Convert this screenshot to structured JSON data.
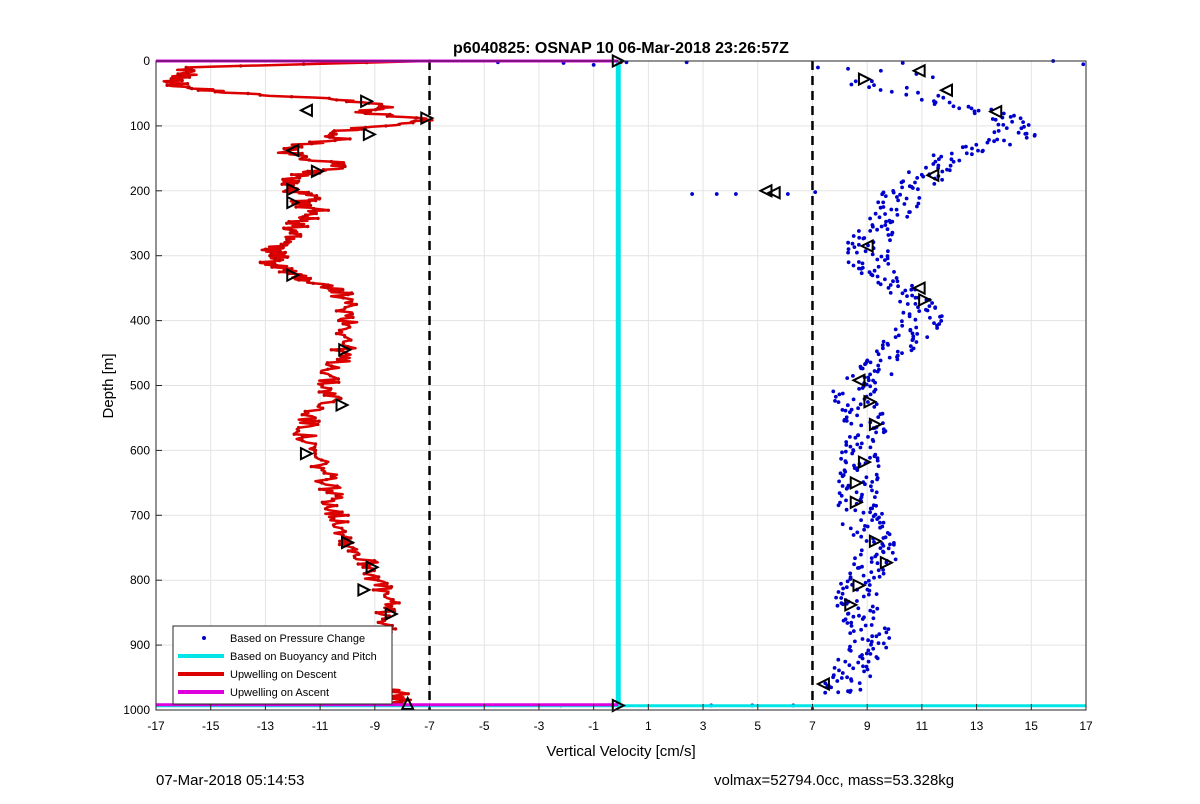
{
  "chart_data": {
    "type": "scatter",
    "title": "p6040825: OSNAP 10 06-Mar-2018 23:26:57Z",
    "xlabel": "Vertical Velocity [cm/s]",
    "ylabel": "Depth [m]",
    "xlim": [
      -17,
      17
    ],
    "ylim": [
      1000,
      0
    ],
    "y_reversed": true,
    "grid": true,
    "x_ticks": [
      -17,
      -15,
      -13,
      -11,
      -9,
      -7,
      -5,
      -3,
      -1,
      1,
      3,
      5,
      7,
      9,
      11,
      13,
      15,
      17
    ],
    "y_ticks": [
      0,
      100,
      200,
      300,
      400,
      500,
      600,
      700,
      800,
      900,
      1000
    ],
    "legend_position": "bottom-left",
    "reference_lines": {
      "dashed_vertical_x": [
        -7,
        7
      ],
      "buoyancy_line_x": -0.1,
      "top_line_depth": 0,
      "bottom_line_depth": 992
    },
    "series": [
      {
        "name": "Based on Pressure Change",
        "color": "#0000cc",
        "marker": "dot",
        "profile": [
          [
            30,
            8.5
          ],
          [
            60,
            11.5
          ],
          [
            80,
            13.6
          ],
          [
            100,
            14.2
          ],
          [
            120,
            14.4
          ],
          [
            140,
            12.6
          ],
          [
            160,
            11.4
          ],
          [
            180,
            11.2
          ],
          [
            200,
            10.2
          ],
          [
            220,
            10.1
          ],
          [
            240,
            9.8
          ],
          [
            260,
            9.4
          ],
          [
            280,
            9.1
          ],
          [
            300,
            9.0
          ],
          [
            320,
            9.2
          ],
          [
            340,
            9.8
          ],
          [
            360,
            10.8
          ],
          [
            380,
            11.1
          ],
          [
            400,
            11.0
          ],
          [
            420,
            10.6
          ],
          [
            440,
            10.0
          ],
          [
            460,
            9.7
          ],
          [
            480,
            9.3
          ],
          [
            500,
            8.6
          ],
          [
            520,
            8.5
          ],
          [
            540,
            8.8
          ],
          [
            560,
            9.0
          ],
          [
            580,
            9.0
          ],
          [
            600,
            8.7
          ],
          [
            620,
            8.6
          ],
          [
            640,
            8.7
          ],
          [
            660,
            8.6
          ],
          [
            680,
            8.7
          ],
          [
            700,
            8.8
          ],
          [
            720,
            8.9
          ],
          [
            740,
            9.2
          ],
          [
            760,
            9.3
          ],
          [
            780,
            9.3
          ],
          [
            800,
            8.8
          ],
          [
            820,
            8.6
          ],
          [
            840,
            8.7
          ],
          [
            860,
            8.9
          ],
          [
            880,
            9.1
          ],
          [
            900,
            9.0
          ],
          [
            920,
            8.7
          ],
          [
            940,
            8.4
          ],
          [
            960,
            8.2
          ],
          [
            975,
            8.0
          ]
        ],
        "outliers": [
          [
            0,
            15.8
          ],
          [
            5,
            16.9
          ],
          [
            3,
            10.3
          ],
          [
            2,
            0.2
          ],
          [
            2,
            2.4
          ],
          [
            2,
            -4.5
          ],
          [
            3,
            -2.1
          ],
          [
            6,
            -1.0
          ],
          [
            10,
            7.2
          ],
          [
            12,
            8.3
          ],
          [
            15,
            9.5
          ],
          [
            20,
            10.8
          ],
          [
            25,
            11.4
          ],
          [
            205,
            2.6
          ],
          [
            205,
            3.5
          ],
          [
            205,
            4.2
          ],
          [
            205,
            6.1
          ],
          [
            202,
            7.1
          ],
          [
            993,
            -3.0
          ],
          [
            993,
            -2.2
          ],
          [
            993,
            3.3
          ],
          [
            993,
            4.8
          ],
          [
            993,
            6.3
          ]
        ]
      },
      {
        "name": "Based on Buoyancy and Pitch",
        "color": "#00e5e5",
        "marker": "line",
        "x": [
          -0.1,
          -0.1
        ],
        "depth": [
          0,
          993
        ]
      },
      {
        "name": "Upwelling on Descent",
        "color": "#dd0000",
        "marker": "line",
        "profile": [
          [
            0,
            -7.0
          ],
          [
            10,
            -16.2
          ],
          [
            20,
            -15.8
          ],
          [
            30,
            -16.4
          ],
          [
            40,
            -16.1
          ],
          [
            50,
            -14.0
          ],
          [
            60,
            -10.0
          ],
          [
            70,
            -8.6
          ],
          [
            80,
            -9.5
          ],
          [
            90,
            -7.1
          ],
          [
            100,
            -8.8
          ],
          [
            110,
            -10.8
          ],
          [
            120,
            -10.3
          ],
          [
            130,
            -11.8
          ],
          [
            140,
            -12.3
          ],
          [
            150,
            -11.5
          ],
          [
            160,
            -10.0
          ],
          [
            170,
            -11.2
          ],
          [
            180,
            -12.0
          ],
          [
            190,
            -12.2
          ],
          [
            200,
            -12.0
          ],
          [
            210,
            -11.3
          ],
          [
            220,
            -11.9
          ],
          [
            230,
            -11.0
          ],
          [
            240,
            -11.4
          ],
          [
            250,
            -11.8
          ],
          [
            260,
            -12.0
          ],
          [
            270,
            -12.1
          ],
          [
            280,
            -12.3
          ],
          [
            290,
            -12.8
          ],
          [
            300,
            -12.4
          ],
          [
            310,
            -12.9
          ],
          [
            320,
            -12.3
          ],
          [
            330,
            -12.0
          ],
          [
            340,
            -11.3
          ],
          [
            350,
            -10.5
          ],
          [
            360,
            -10.2
          ],
          [
            380,
            -10.0
          ],
          [
            400,
            -9.9
          ],
          [
            420,
            -10.0
          ],
          [
            440,
            -10.1
          ],
          [
            460,
            -10.3
          ],
          [
            480,
            -10.6
          ],
          [
            500,
            -10.8
          ],
          [
            520,
            -10.5
          ],
          [
            540,
            -11.3
          ],
          [
            560,
            -11.5
          ],
          [
            580,
            -11.6
          ],
          [
            600,
            -11.4
          ],
          [
            620,
            -11.0
          ],
          [
            640,
            -10.8
          ],
          [
            660,
            -10.6
          ],
          [
            680,
            -10.5
          ],
          [
            700,
            -10.4
          ],
          [
            720,
            -10.1
          ],
          [
            740,
            -10.0
          ],
          [
            760,
            -9.6
          ],
          [
            780,
            -9.1
          ],
          [
            800,
            -8.9
          ],
          [
            820,
            -8.7
          ],
          [
            840,
            -8.5
          ],
          [
            860,
            -8.6
          ],
          [
            880,
            -8.7
          ],
          [
            900,
            -9.1
          ],
          [
            920,
            -9.6
          ],
          [
            940,
            -9.3
          ],
          [
            960,
            -8.9
          ],
          [
            975,
            -8.2
          ],
          [
            990,
            -8.0
          ]
        ]
      },
      {
        "name": "Upwelling on Ascent",
        "color": "#dd00dd",
        "marker": "line",
        "depth": [
          0,
          992
        ]
      }
    ],
    "triangle_markers": [
      [
        0,
        -0.1,
        "right"
      ],
      [
        15,
        10.9,
        "left"
      ],
      [
        28,
        8.9,
        "right"
      ],
      [
        45,
        11.9,
        "left"
      ],
      [
        62,
        -9.3,
        "right"
      ],
      [
        76,
        -11.5,
        "left"
      ],
      [
        78,
        13.7,
        "left"
      ],
      [
        88,
        -7.1,
        "right"
      ],
      [
        113,
        -9.2,
        "right"
      ],
      [
        138,
        -12.0,
        "left"
      ],
      [
        170,
        -11.1,
        "right"
      ],
      [
        176,
        11.4,
        "left"
      ],
      [
        198,
        -12.0,
        "right"
      ],
      [
        200,
        5.3,
        "left"
      ],
      [
        203,
        5.6,
        "left"
      ],
      [
        218,
        -12.0,
        "right"
      ],
      [
        285,
        9.0,
        "left"
      ],
      [
        330,
        -12.0,
        "right"
      ],
      [
        350,
        10.9,
        "left"
      ],
      [
        368,
        11.1,
        "right"
      ],
      [
        445,
        -10.1,
        "right"
      ],
      [
        492,
        8.7,
        "left"
      ],
      [
        525,
        9.1,
        "right"
      ],
      [
        530,
        -10.2,
        "right"
      ],
      [
        560,
        9.3,
        "right"
      ],
      [
        605,
        -11.5,
        "right"
      ],
      [
        618,
        8.9,
        "right"
      ],
      [
        650,
        8.6,
        "right"
      ],
      [
        680,
        8.6,
        "right"
      ],
      [
        740,
        9.3,
        "right"
      ],
      [
        742,
        -10.0,
        "right"
      ],
      [
        773,
        9.7,
        "right"
      ],
      [
        780,
        -9.1,
        "right"
      ],
      [
        808,
        8.7,
        "right"
      ],
      [
        815,
        -9.4,
        "right"
      ],
      [
        838,
        8.4,
        "right"
      ],
      [
        852,
        -8.4,
        "right"
      ],
      [
        882,
        -8.8,
        "right"
      ],
      [
        918,
        -9.9,
        "right"
      ],
      [
        960,
        7.4,
        "left"
      ],
      [
        990,
        -7.8,
        "up"
      ],
      [
        993,
        -0.1,
        "right"
      ]
    ]
  },
  "footer": {
    "left": "07-Mar-2018 05:14:53",
    "right": "volmax=52794.0cc, mass=53.328kg"
  }
}
